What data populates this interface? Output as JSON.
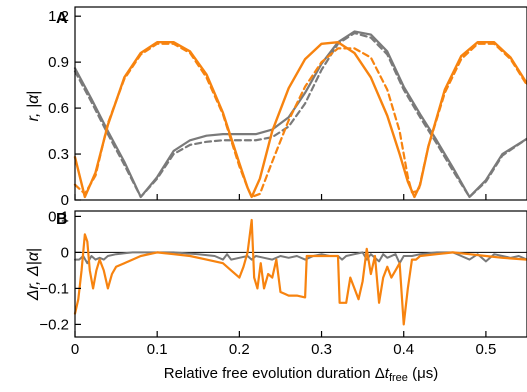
{
  "colors": {
    "orange": "#F7830F",
    "gray": "#7A7A7A",
    "axis": "#000000"
  },
  "chart_data": [
    {
      "panel_label": "A",
      "type": "line",
      "xlabel": "",
      "ylabel_main": "r, |",
      "ylabel_alpha": "α",
      "ylabel_end": "|",
      "xlim": [
        0,
        0.55
      ],
      "ylim": [
        0,
        1.26
      ],
      "yticks": [
        0,
        0.3,
        0.6,
        0.9,
        1.2
      ],
      "ytick_labels": [
        "0",
        "0.3",
        "0.6",
        "0.9",
        "1.2"
      ],
      "xticks": [
        0,
        0.1,
        0.2,
        0.3,
        0.4,
        0.5
      ],
      "series": [
        {
          "color": "gray",
          "dash": "6,4",
          "width": 2.2,
          "x": [
            0,
            0.02,
            0.04,
            0.06,
            0.08,
            0.1,
            0.12,
            0.14,
            0.16,
            0.18,
            0.2,
            0.22,
            0.24,
            0.26,
            0.28,
            0.3,
            0.32,
            0.34,
            0.36,
            0.38,
            0.4,
            0.42,
            0.44,
            0.46,
            0.48,
            0.5,
            0.52,
            0.55
          ],
          "y": [
            0.84,
            0.64,
            0.43,
            0.23,
            0.02,
            0.14,
            0.3,
            0.36,
            0.38,
            0.39,
            0.39,
            0.39,
            0.41,
            0.48,
            0.63,
            0.85,
            1.02,
            1.09,
            1.06,
            0.95,
            0.72,
            0.54,
            0.37,
            0.19,
            0.02,
            0.12,
            0.29,
            0.4
          ]
        },
        {
          "color": "gray",
          "dash": "",
          "width": 2.2,
          "x": [
            0,
            0.02,
            0.04,
            0.06,
            0.08,
            0.1,
            0.12,
            0.14,
            0.16,
            0.18,
            0.2,
            0.22,
            0.24,
            0.26,
            0.28,
            0.3,
            0.32,
            0.34,
            0.36,
            0.38,
            0.4,
            0.42,
            0.44,
            0.46,
            0.48,
            0.5,
            0.52,
            0.55
          ],
          "y": [
            0.86,
            0.66,
            0.45,
            0.25,
            0.02,
            0.15,
            0.32,
            0.39,
            0.42,
            0.43,
            0.43,
            0.43,
            0.46,
            0.54,
            0.7,
            0.89,
            1.03,
            1.1,
            1.08,
            0.97,
            0.74,
            0.56,
            0.39,
            0.21,
            0.02,
            0.13,
            0.3,
            0.4
          ]
        },
        {
          "color": "orange",
          "dash": "6,4",
          "width": 2.2,
          "x": [
            0,
            0.012,
            0.025,
            0.04,
            0.06,
            0.08,
            0.1,
            0.12,
            0.14,
            0.16,
            0.18,
            0.2,
            0.21,
            0.215,
            0.225,
            0.24,
            0.26,
            0.28,
            0.3,
            0.32,
            0.34,
            0.36,
            0.38,
            0.395,
            0.405,
            0.41,
            0.418,
            0.43,
            0.45,
            0.47,
            0.49,
            0.51,
            0.53,
            0.55
          ],
          "y": [
            0.1,
            0.04,
            0.16,
            0.5,
            0.79,
            0.95,
            1.02,
            1.02,
            0.96,
            0.8,
            0.56,
            0.22,
            0.08,
            0.02,
            0.04,
            0.25,
            0.52,
            0.74,
            0.9,
            0.99,
            0.99,
            0.93,
            0.72,
            0.45,
            0.15,
            0.05,
            0.06,
            0.35,
            0.7,
            0.92,
            1.02,
            1.02,
            0.92,
            0.75
          ]
        },
        {
          "color": "orange",
          "dash": "",
          "width": 2.4,
          "x": [
            0,
            0.012,
            0.025,
            0.04,
            0.06,
            0.08,
            0.1,
            0.12,
            0.14,
            0.16,
            0.18,
            0.2,
            0.21,
            0.215,
            0.225,
            0.24,
            0.26,
            0.28,
            0.3,
            0.32,
            0.34,
            0.36,
            0.38,
            0.395,
            0.405,
            0.413,
            0.42,
            0.43,
            0.45,
            0.47,
            0.49,
            0.51,
            0.53,
            0.55
          ],
          "y": [
            0.28,
            0.02,
            0.18,
            0.49,
            0.8,
            0.96,
            1.03,
            1.03,
            0.97,
            0.82,
            0.57,
            0.24,
            0.08,
            0.02,
            0.14,
            0.45,
            0.73,
            0.92,
            1.02,
            1.03,
            0.96,
            0.8,
            0.55,
            0.3,
            0.12,
            0.02,
            0.1,
            0.35,
            0.72,
            0.94,
            1.03,
            1.03,
            0.93,
            0.76
          ]
        }
      ]
    },
    {
      "panel_label": "B",
      "type": "line",
      "xlabel_main": "Relative free evolution duration Δ",
      "xlabel_t": "t",
      "xlabel_sub": "free",
      "xlabel_unit": " (μs)",
      "ylabel_main": "Δr, Δ|",
      "ylabel_alpha": "α",
      "ylabel_end": "|",
      "xlim": [
        0,
        0.55
      ],
      "ylim": [
        -0.235,
        0.115
      ],
      "yticks": [
        -0.2,
        -0.1,
        0,
        0.1
      ],
      "ytick_labels": [
        "−0.2",
        "−0.1",
        "0",
        "0.1"
      ],
      "xticks": [
        0,
        0.1,
        0.2,
        0.3,
        0.4,
        0.5
      ],
      "xtick_labels": [
        "0",
        "0.1",
        "0.2",
        "0.3",
        "0.4",
        "0.5"
      ],
      "zero_line": true,
      "series": [
        {
          "color": "gray",
          "dash": "",
          "width": 2,
          "x": [
            0,
            0.005,
            0.01,
            0.015,
            0.02,
            0.025,
            0.03,
            0.035,
            0.04,
            0.05,
            0.07,
            0.09,
            0.12,
            0.15,
            0.17,
            0.18,
            0.185,
            0.19,
            0.2,
            0.21,
            0.215,
            0.22,
            0.23,
            0.24,
            0.25,
            0.26,
            0.27,
            0.28,
            0.29,
            0.3,
            0.31,
            0.32,
            0.325,
            0.33,
            0.34,
            0.35,
            0.355,
            0.36,
            0.37,
            0.375,
            0.38,
            0.39,
            0.395,
            0.4,
            0.41,
            0.42,
            0.44,
            0.46,
            0.47,
            0.48,
            0.49,
            0.5,
            0.51,
            0.52,
            0.53,
            0.54,
            0.55
          ],
          "y": [
            -0.02,
            -0.02,
            -0.01,
            -0.03,
            -0.01,
            -0.02,
            -0.015,
            -0.02,
            -0.01,
            -0.005,
            0,
            0,
            0,
            -0.005,
            -0.01,
            -0.02,
            -0.005,
            -0.02,
            -0.015,
            -0.01,
            -0.02,
            -0.01,
            -0.015,
            -0.02,
            -0.01,
            -0.015,
            -0.01,
            -0.02,
            -0.01,
            -0.005,
            -0.01,
            -0.01,
            -0.02,
            -0.01,
            -0.005,
            0,
            -0.02,
            -0.005,
            -0.025,
            -0.005,
            -0.015,
            -0.005,
            -0.03,
            -0.01,
            -0.01,
            -0.005,
            0,
            0,
            -0.01,
            -0.02,
            -0.005,
            -0.025,
            -0.005,
            -0.01,
            -0.015,
            -0.01,
            -0.02
          ]
        },
        {
          "color": "orange",
          "dash": "",
          "width": 2.2,
          "x": [
            0,
            0.004,
            0.008,
            0.012,
            0.015,
            0.018,
            0.022,
            0.026,
            0.03,
            0.035,
            0.04,
            0.045,
            0.05,
            0.06,
            0.08,
            0.1,
            0.12,
            0.14,
            0.16,
            0.18,
            0.19,
            0.2,
            0.205,
            0.21,
            0.215,
            0.218,
            0.222,
            0.226,
            0.23,
            0.235,
            0.24,
            0.245,
            0.25,
            0.255,
            0.26,
            0.27,
            0.28,
            0.282,
            0.29,
            0.3,
            0.31,
            0.32,
            0.322,
            0.33,
            0.335,
            0.34,
            0.345,
            0.35,
            0.355,
            0.36,
            0.365,
            0.37,
            0.375,
            0.38,
            0.385,
            0.39,
            0.395,
            0.4,
            0.402,
            0.405,
            0.41,
            0.415,
            0.42,
            0.44,
            0.46,
            0.48,
            0.5,
            0.52,
            0.55
          ],
          "y": [
            -0.17,
            -0.13,
            -0.05,
            0.05,
            0.03,
            -0.05,
            -0.1,
            -0.05,
            -0.02,
            -0.05,
            -0.1,
            -0.06,
            -0.04,
            -0.03,
            -0.01,
            0,
            -0.005,
            -0.01,
            -0.02,
            -0.03,
            -0.05,
            -0.07,
            -0.04,
            0,
            0.09,
            -0.07,
            -0.1,
            -0.03,
            -0.1,
            -0.06,
            -0.07,
            -0.02,
            -0.11,
            -0.115,
            -0.12,
            -0.12,
            -0.125,
            -0.01,
            -0.01,
            -0.01,
            -0.01,
            -0.01,
            -0.14,
            -0.14,
            -0.07,
            -0.1,
            -0.13,
            -0.08,
            0.01,
            -0.06,
            -0.01,
            -0.14,
            -0.07,
            -0.04,
            -0.07,
            -0.05,
            -0.03,
            -0.2,
            -0.16,
            -0.1,
            -0.02,
            -0.02,
            -0.01,
            -0.005,
            0,
            -0.005,
            -0.01,
            -0.015,
            -0.02
          ]
        }
      ]
    }
  ]
}
